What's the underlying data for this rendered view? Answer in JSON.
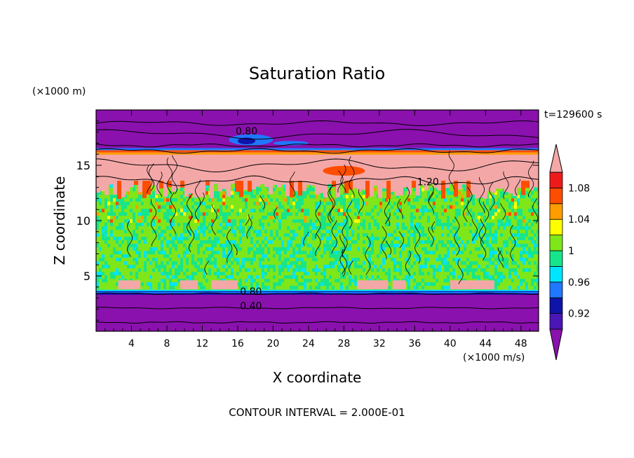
{
  "chart_data": {
    "type": "heatmap",
    "title": "Saturation Ratio",
    "time_label": "t=129600 s",
    "xlabel": "X coordinate",
    "ylabel": "Z coordinate",
    "x_unit": "(×1000 m/s)",
    "y_unit": "(×1000 m)",
    "xlim": [
      0,
      50
    ],
    "ylim": [
      0,
      20
    ],
    "x_ticks": [
      4,
      8,
      12,
      16,
      20,
      24,
      28,
      32,
      36,
      40,
      44,
      48
    ],
    "y_ticks": [
      5,
      10,
      15
    ],
    "footer": "CONTOUR INTERVAL = 2.000E-01",
    "contour_labels": [
      {
        "text": "0.80",
        "x": 17,
        "z": 17.8
      },
      {
        "text": "1.20",
        "x": 37.5,
        "z": 13.2
      },
      {
        "text": "0.80",
        "x": 17.5,
        "z": 3.3
      },
      {
        "text": "0.40",
        "x": 17.5,
        "z": 2.0
      }
    ],
    "colorbar": {
      "levels": [
        0.92,
        0.96,
        1,
        1.04,
        1.08
      ],
      "level_labels": [
        "0.92",
        "0.96",
        "1",
        "1.04",
        "1.08"
      ],
      "bands": [
        {
          "from": null,
          "to": 0.9,
          "color": "#8a11ad"
        },
        {
          "from": 0.9,
          "to": 0.92,
          "color": "#4a16b6"
        },
        {
          "from": 0.92,
          "to": 0.94,
          "color": "#0f14a8"
        },
        {
          "from": 0.94,
          "to": 0.96,
          "color": "#1f78ff"
        },
        {
          "from": 0.96,
          "to": 0.98,
          "color": "#00e5ff"
        },
        {
          "from": 0.98,
          "to": 1.0,
          "color": "#17e58c"
        },
        {
          "from": 1.0,
          "to": 1.02,
          "color": "#7fe61a"
        },
        {
          "from": 1.02,
          "to": 1.04,
          "color": "#ffff00"
        },
        {
          "from": 1.04,
          "to": 1.06,
          "color": "#ff9d00"
        },
        {
          "from": 1.06,
          "to": 1.08,
          "color": "#ff4d00"
        },
        {
          "from": 1.08,
          "to": 1.1,
          "color": "#ee1a1a"
        },
        {
          "from": 1.1,
          "to": null,
          "color": "#f4a7a7"
        }
      ]
    },
    "regions": [
      {
        "zmin": 0,
        "zmax": 3.3,
        "value": 0.4,
        "color": "#8a11ad"
      },
      {
        "zmin": 3.3,
        "zmax": 3.7,
        "value": 0.93,
        "color": "#0f14a8"
      },
      {
        "zmin": 3.7,
        "zmax": 13.5,
        "value": 1.0,
        "color": "#7fe61a"
      },
      {
        "zmin": 13.5,
        "zmax": 16.4,
        "value": 1.2,
        "color": "#f4a7a7"
      },
      {
        "zmin": 16.4,
        "zmax": 20,
        "value": 0.6,
        "color": "#8a11ad"
      }
    ]
  }
}
